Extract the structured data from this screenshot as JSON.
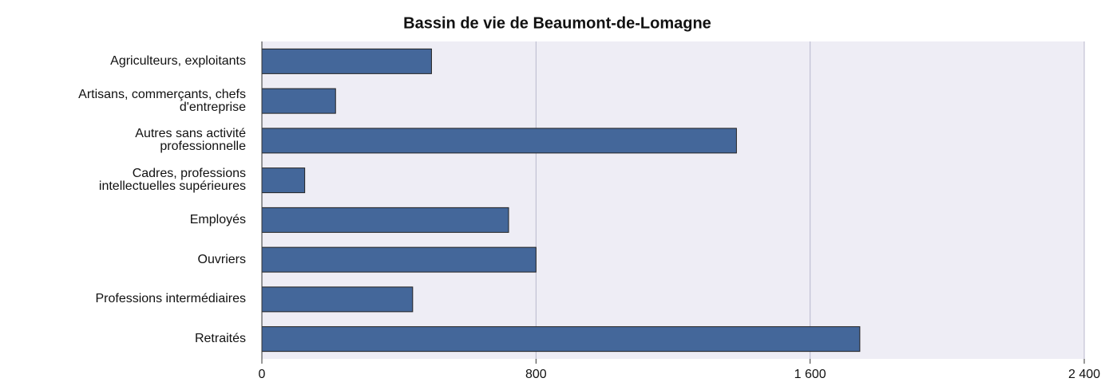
{
  "chart_data": {
    "type": "bar",
    "title": "Bassin de vie de Beaumont-de-Lomagne",
    "categories": [
      "Agriculteurs, exploitants",
      "Artisans, commerçants, chefs d'entreprise",
      "Autres sans activité professionnelle",
      "Cadres, professions intellectuelles supérieures",
      "Employés",
      "Ouvriers",
      "Professions intermédiaires",
      "Retraités"
    ],
    "values": [
      495,
      215,
      1385,
      125,
      720,
      800,
      440,
      1745
    ],
    "color": "#44679a",
    "xlim": [
      0,
      2400
    ],
    "xticks": [
      0,
      800,
      {
        "value": 1600,
        "label": "1 600"
      },
      {
        "value": 2400,
        "label": "2 400"
      }
    ],
    "grid": true
  }
}
